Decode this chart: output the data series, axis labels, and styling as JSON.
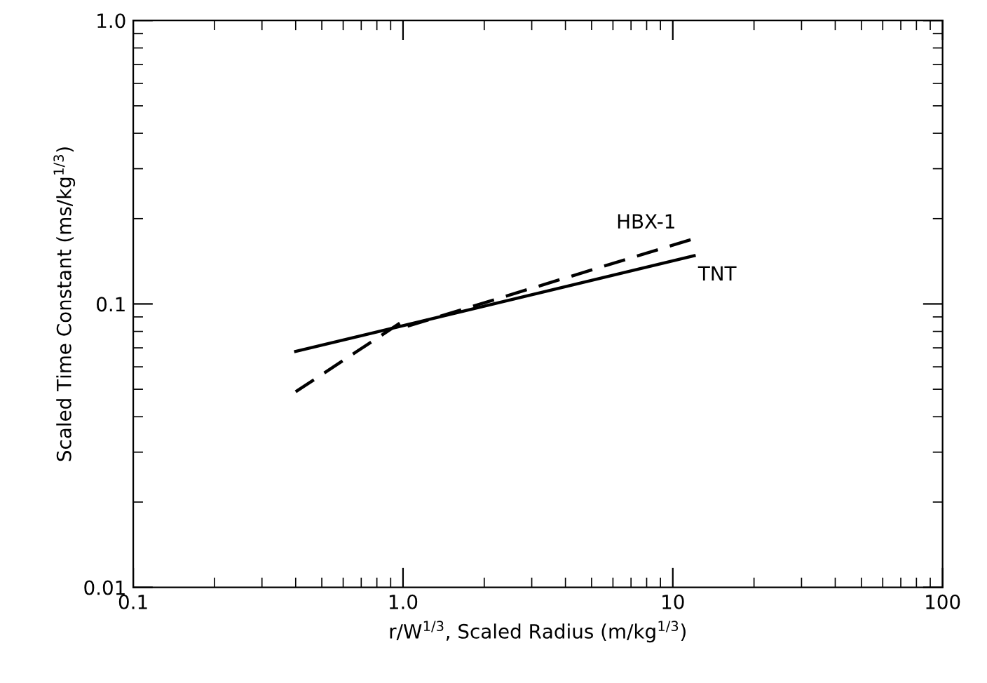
{
  "chart_data": {
    "type": "line",
    "xlabel": "r/W$^{1/3}$, Scaled Radius (m/kg$^{1/3}$)",
    "ylabel": "Scaled Time Constant (ms/kg$^{1/3}$)",
    "log": "xy",
    "xlim": [
      0.1,
      100
    ],
    "ylim": [
      0.01,
      1.0
    ],
    "xticks": [
      0.1,
      {
        "value": 1,
        "label": "1.0"
      },
      10,
      100
    ],
    "yticks": [
      0.01,
      0.1,
      {
        "value": 1,
        "label": "1.0"
      }
    ],
    "grid": false,
    "legend": false,
    "marker": "none",
    "series": [
      {
        "name": "HBX-1",
        "color": "#000000",
        "line_style": "dashed",
        "x": [
          0.4,
          1.0,
          1.02,
          12
        ],
        "values": [
          0.049,
          0.087,
          0.083,
          0.17
        ]
      },
      {
        "name": "TNT",
        "color": "#000000",
        "line_style": "solid",
        "x": [
          0.4,
          12
        ],
        "values": [
          0.068,
          0.148
        ]
      }
    ]
  }
}
